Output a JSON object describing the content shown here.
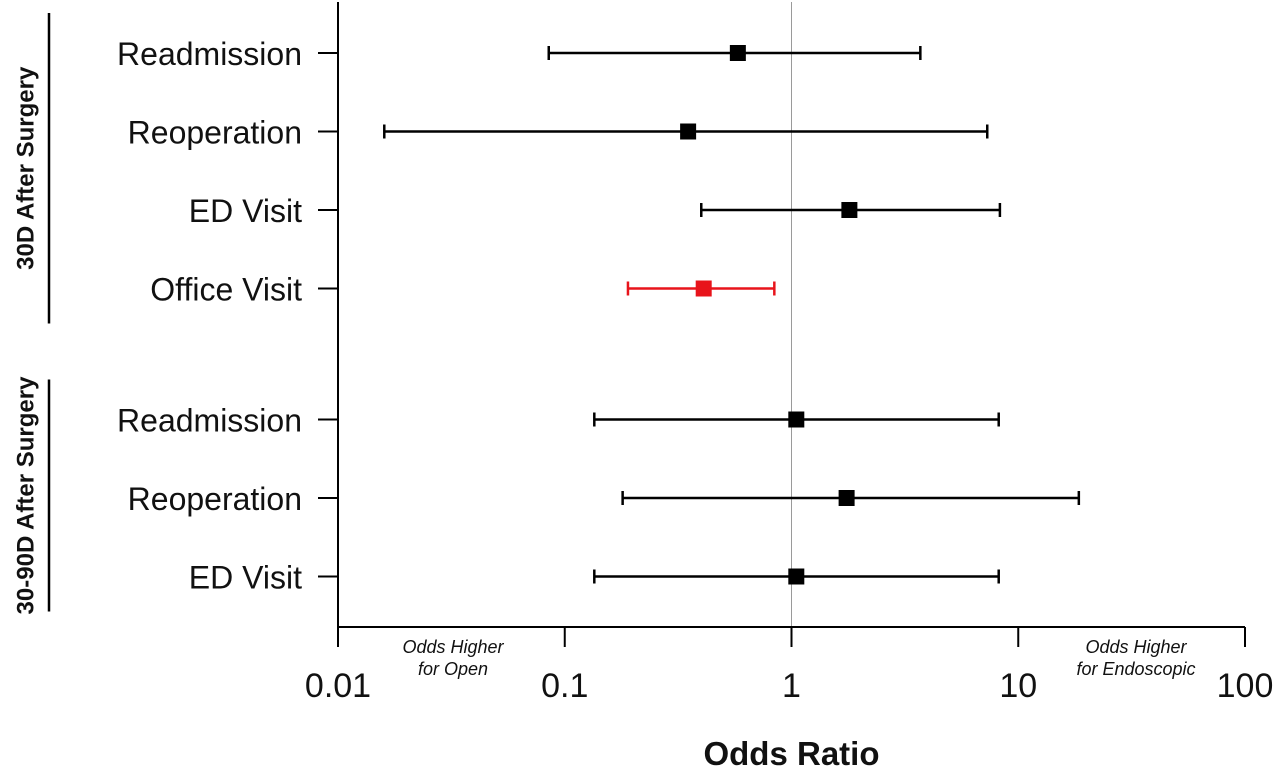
{
  "chart_data": {
    "type": "forest",
    "xlabel": "Odds Ratio",
    "x_scale": "log",
    "xlim": [
      0.01,
      100
    ],
    "x_ticks": [
      "0.01",
      "0.1",
      "1",
      "10",
      "100"
    ],
    "reference_line": 1,
    "annotations": {
      "left": [
        "Odds Higher",
        "for Open"
      ],
      "right": [
        "Odds Higher",
        "for Endoscopic"
      ]
    },
    "groups": [
      {
        "label": "30D After Surgery",
        "rows": [
          {
            "label": "Readmission",
            "or": 0.58,
            "ci_low": 0.085,
            "ci_high": 3.7,
            "color": "#000000"
          },
          {
            "label": "Reoperation",
            "or": 0.35,
            "ci_low": 0.016,
            "ci_high": 7.3,
            "color": "#000000"
          },
          {
            "label": "ED Visit",
            "or": 1.8,
            "ci_low": 0.4,
            "ci_high": 8.3,
            "color": "#000000"
          },
          {
            "label": "Office Visit",
            "or": 0.41,
            "ci_low": 0.19,
            "ci_high": 0.84,
            "color": "#e8141b"
          }
        ]
      },
      {
        "label": "30-90D After Surgery",
        "rows": [
          {
            "label": "Readmission",
            "or": 1.05,
            "ci_low": 0.135,
            "ci_high": 8.2,
            "color": "#000000"
          },
          {
            "label": "Reoperation",
            "or": 1.75,
            "ci_low": 0.18,
            "ci_high": 18.5,
            "color": "#000000"
          },
          {
            "label": "ED Visit",
            "or": 1.05,
            "ci_low": 0.135,
            "ci_high": 8.2,
            "color": "#000000"
          }
        ]
      }
    ]
  }
}
